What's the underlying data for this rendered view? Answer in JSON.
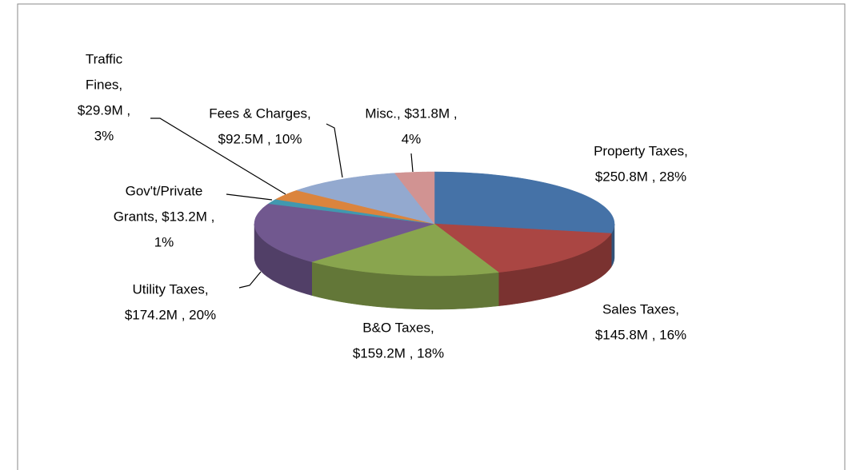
{
  "chart_data": {
    "type": "pie3d",
    "data_labels": [
      [
        "Property Taxes,",
        "$250.8M , 28%"
      ],
      [
        "Sales Taxes,",
        "$145.8M , 16%"
      ],
      [
        "B&O Taxes,",
        "$159.2M , 18%"
      ],
      [
        "Utility Taxes,",
        "$174.2M , 20%"
      ],
      [
        "Gov't/Private",
        "Grants,  $13.2M ,",
        "1%"
      ],
      [
        "Traffic",
        "Fines,",
        "$29.9M ,",
        "3%"
      ],
      [
        "Fees & Charges,",
        "$92.5M , 10%"
      ],
      [
        "Misc.,  $31.8M ,",
        "4%"
      ]
    ],
    "values": [
      250.8,
      145.8,
      159.2,
      174.2,
      13.2,
      29.9,
      92.5,
      31.8
    ],
    "colors": [
      "#4572a7",
      "#aa4643",
      "#89a54e",
      "#71588f",
      "#4198af",
      "#db843d",
      "#93a9cf",
      "#d19392"
    ]
  }
}
